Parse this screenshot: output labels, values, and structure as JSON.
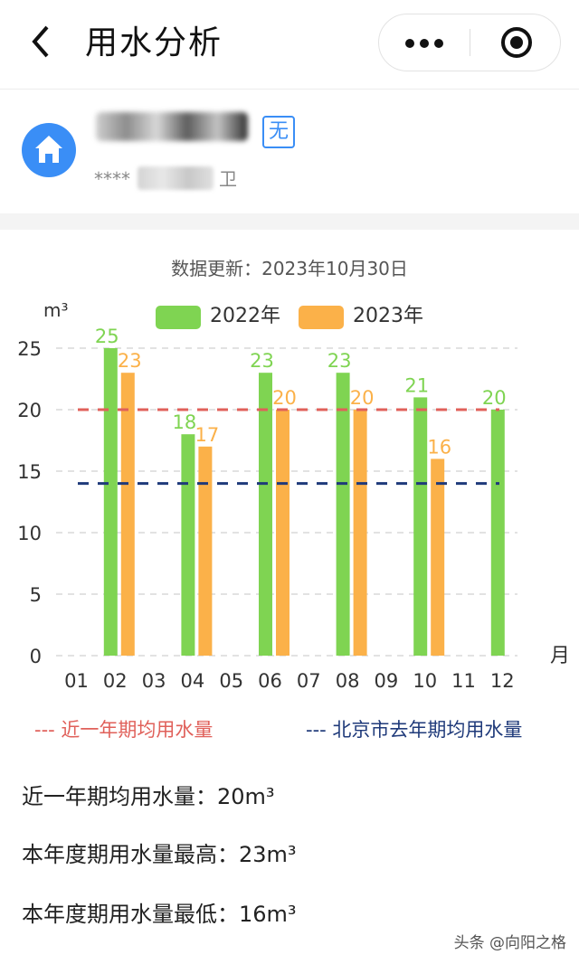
{
  "nav": {
    "title": "用水分析",
    "back_icon": "chevron-left-icon",
    "more_icon": "more-dots-icon",
    "close_icon": "target-circle-icon"
  },
  "account": {
    "badge": "无",
    "address_prefix": "****",
    "address_suffix": "卫",
    "avatar_icon": "home-icon",
    "accent": "#3a8ef6"
  },
  "update_text": "数据更新：2023年10月30日",
  "legend": [
    {
      "label": "2022年",
      "color": "#7fd452"
    },
    {
      "label": "2023年",
      "color": "#fbb149"
    }
  ],
  "line_legend": {
    "recent": {
      "label": "--- 近一年期均用水量",
      "color": "#e0605a"
    },
    "beijing": {
      "label": "--- 北京市去年期均用水量",
      "color": "#1f3a7a"
    }
  },
  "chart_data": {
    "type": "bar",
    "y_unit": "m³",
    "x_unit": "月",
    "categories": [
      "01",
      "02",
      "03",
      "04",
      "05",
      "06",
      "07",
      "08",
      "09",
      "10",
      "11",
      "12"
    ],
    "ylim": [
      0,
      25
    ],
    "yticks": [
      0,
      5,
      10,
      15,
      20,
      25
    ],
    "grid": true,
    "series": [
      {
        "name": "2022年",
        "color": "#7fd452",
        "values": [
          null,
          25,
          null,
          18,
          null,
          23,
          null,
          23,
          null,
          21,
          null,
          20
        ]
      },
      {
        "name": "2023年",
        "color": "#fbb149",
        "values": [
          null,
          23,
          null,
          17,
          null,
          20,
          null,
          20,
          null,
          16,
          null,
          null
        ]
      }
    ],
    "reference_lines": [
      {
        "name": "近一年期均用水量",
        "value": 20,
        "color": "#e0605a"
      },
      {
        "name": "北京市去年期均用水量",
        "value": 14,
        "color": "#1f3a7a"
      }
    ]
  },
  "stats": [
    "近一年期均用水量：20m³",
    "本年度期用水量最高：23m³",
    "本年度期用水量最低：16m³"
  ],
  "watermark": "头条 @向阳之格"
}
